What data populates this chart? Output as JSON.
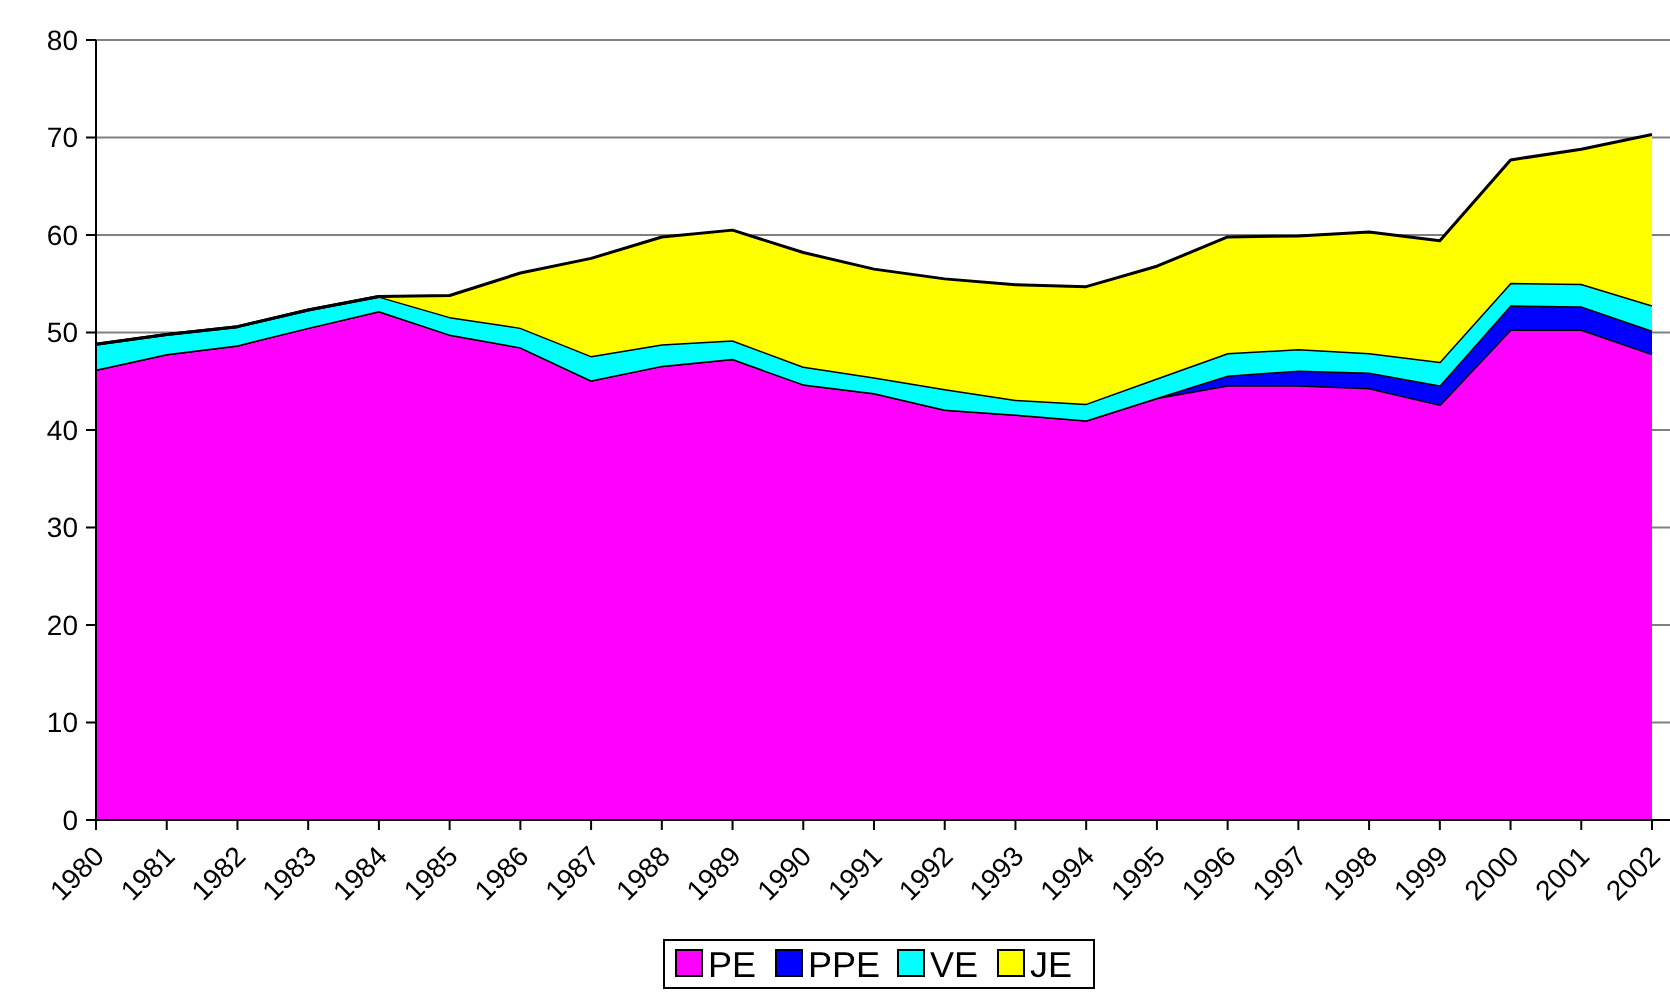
{
  "chart_data": {
    "type": "area",
    "stacked": true,
    "categories": [
      "1980",
      "1981",
      "1982",
      "1983",
      "1984",
      "1985",
      "1986",
      "1987",
      "1988",
      "1989",
      "1990",
      "1991",
      "1992",
      "1993",
      "1994",
      "1995",
      "1996",
      "1997",
      "1998",
      "1999",
      "2000",
      "2001",
      "2002"
    ],
    "series": [
      {
        "name": "PE",
        "color": "#ff00ff",
        "values": [
          46.2,
          47.8,
          48.7,
          50.5,
          52.2,
          49.8,
          48.5,
          45.1,
          46.6,
          47.3,
          44.7,
          43.8,
          42.1,
          41.6,
          41.0,
          43.3,
          44.6,
          44.6,
          44.3,
          42.6,
          50.3,
          50.3,
          47.8
        ]
      },
      {
        "name": "PPE",
        "color": "#0000ff",
        "values": [
          0,
          0,
          0,
          0,
          0,
          0,
          0,
          0,
          0,
          0,
          0,
          0,
          0,
          0,
          0,
          0,
          1.0,
          1.5,
          1.6,
          2.0,
          2.5,
          2.4,
          2.4
        ]
      },
      {
        "name": "VE",
        "color": "#00ffff",
        "values": [
          2.6,
          2.0,
          1.9,
          1.8,
          1.5,
          1.8,
          2.0,
          2.5,
          2.2,
          1.9,
          1.8,
          1.6,
          2.1,
          1.5,
          1.7,
          2.0,
          2.3,
          2.2,
          2.0,
          2.4,
          2.3,
          2.3,
          2.6
        ]
      },
      {
        "name": "JE",
        "color": "#ffff00",
        "values": [
          0,
          0,
          0,
          0,
          0,
          2.2,
          5.6,
          10.0,
          11.0,
          11.3,
          11.7,
          11.1,
          11.3,
          11.8,
          12.0,
          11.5,
          11.9,
          11.6,
          12.4,
          12.4,
          12.6,
          13.8,
          17.5
        ]
      }
    ],
    "ylim": [
      0,
      80
    ],
    "yticks": [
      0,
      10,
      20,
      30,
      40,
      50,
      60,
      70,
      80
    ],
    "grid": "y",
    "legend": "bottom"
  }
}
